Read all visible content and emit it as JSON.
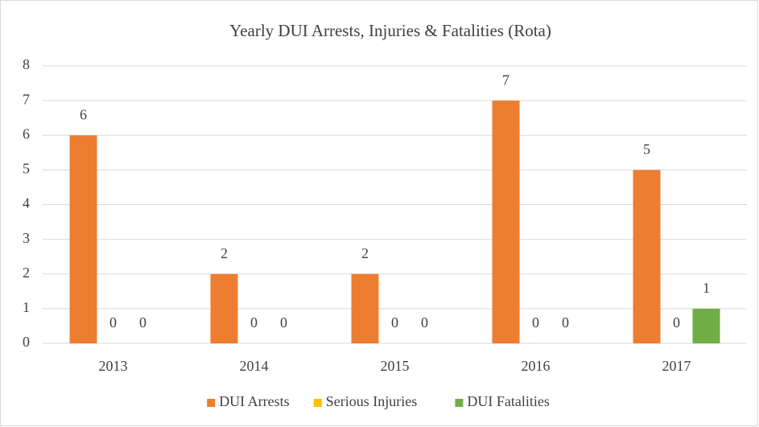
{
  "chart_data": {
    "type": "bar",
    "title": "Yearly DUI Arrests, Injuries & Fatalities (Rota)",
    "categories": [
      "2013",
      "2014",
      "2015",
      "2016",
      "2017"
    ],
    "series": [
      {
        "name": "DUI Arrests",
        "color": "#ed7d31",
        "values": [
          6,
          2,
          2,
          7,
          5
        ]
      },
      {
        "name": "Serious Injuries",
        "color": "#ffc000",
        "values": [
          0,
          0,
          0,
          0,
          0
        ]
      },
      {
        "name": "DUI Fatalities",
        "color": "#70ad47",
        "values": [
          0,
          0,
          0,
          0,
          1
        ]
      }
    ],
    "ylim": [
      0,
      8
    ],
    "yticks": [
      0,
      1,
      2,
      3,
      4,
      5,
      6,
      7,
      8
    ],
    "grid": true,
    "legend": "bottom"
  }
}
